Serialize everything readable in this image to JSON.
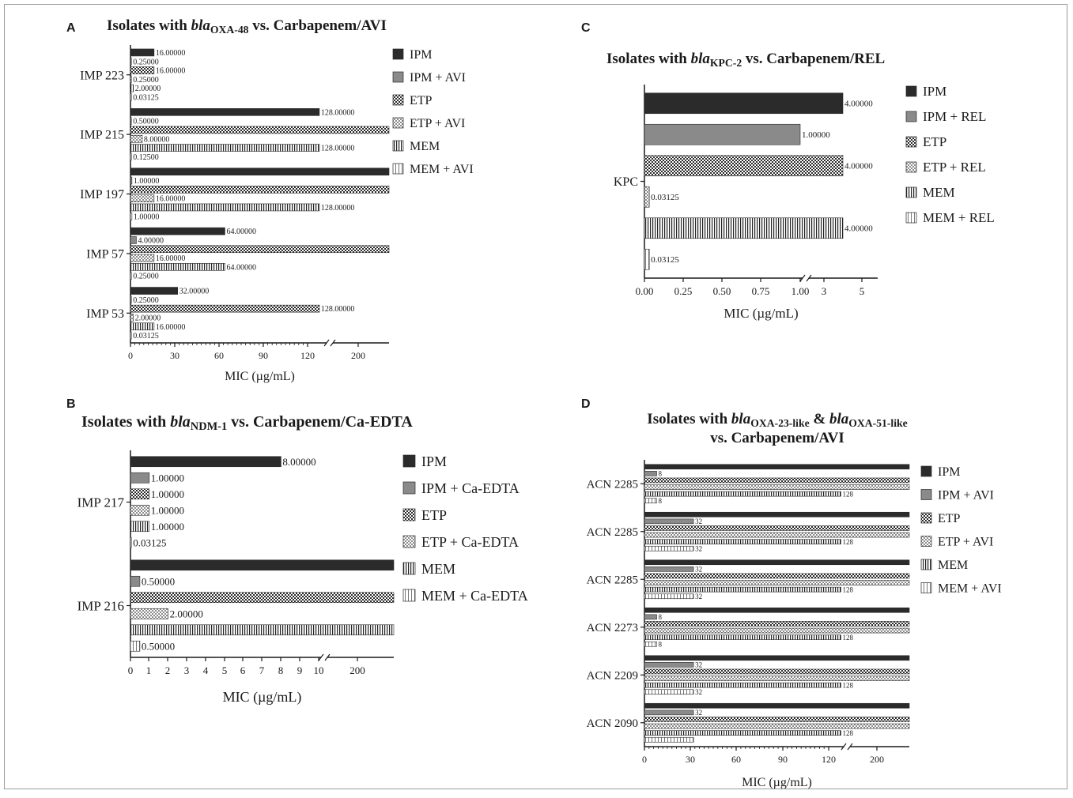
{
  "chart_data": [
    {
      "panel": "A",
      "type": "bar",
      "title_parts": {
        "prefix": "Isolates with ",
        "gene": "bla",
        "sub": "OXA-48",
        "suffix": " vs. Carbapenem/AVI"
      },
      "xlabel": "MIC (µg/mL)",
      "ylabel": "",
      "xticks": [
        "0",
        "30",
        "60",
        "90",
        "120",
        "200"
      ],
      "axis_break": {
        "from": 128,
        "to": 180,
        "max": 256
      },
      "categories": [
        "IMP 223",
        "IMP 215",
        "IMP 197",
        "IMP 57",
        "IMP 53"
      ],
      "series": [
        {
          "name": "IPM",
          "values": [
            16,
            128,
            256,
            64,
            32
          ],
          "labels": [
            "16.00000",
            "128.00000",
            "",
            "64.00000",
            "32.00000"
          ]
        },
        {
          "name": "IPM + AVI",
          "values": [
            0.25,
            0.5,
            1,
            4,
            0.25
          ],
          "labels": [
            "0.25000",
            "0.50000",
            "1.00000",
            "4.00000",
            "0.25000"
          ]
        },
        {
          "name": "ETP",
          "values": [
            16,
            256,
            256,
            256,
            128
          ],
          "labels": [
            "16.00000",
            "",
            "",
            "",
            "128.00000"
          ]
        },
        {
          "name": "ETP + AVI",
          "values": [
            0.25,
            8,
            16,
            16,
            2
          ],
          "labels": [
            "0.25000",
            "8.00000",
            "16.00000",
            "16.00000",
            "2.00000"
          ]
        },
        {
          "name": "MEM",
          "values": [
            2,
            128,
            128,
            64,
            16
          ],
          "labels": [
            "2.00000",
            "128.00000",
            "128.00000",
            "64.00000",
            "16.00000"
          ]
        },
        {
          "name": "MEM + AVI",
          "values": [
            0.03125,
            0.125,
            1,
            0.25,
            0.03125
          ],
          "labels": [
            "0.03125",
            "0.12500",
            "1.00000",
            "0.25000",
            "0.03125"
          ]
        }
      ],
      "legend": "right"
    },
    {
      "panel": "B",
      "type": "bar",
      "title_parts": {
        "prefix": "Isolates with ",
        "gene": "bla",
        "sub": "NDM-1",
        "suffix": " vs. Carbapenem/Ca-EDTA"
      },
      "xlabel": "MIC (µg/mL)",
      "ylabel": "",
      "xticks": [
        "0",
        "1",
        "2",
        "3",
        "4",
        "5",
        "6",
        "7",
        "8",
        "9",
        "10",
        "200"
      ],
      "axis_break": {
        "from": 10,
        "to": 180,
        "max": 256
      },
      "categories": [
        "IMP 217",
        "IMP 216"
      ],
      "series": [
        {
          "name": "IPM",
          "values": [
            8,
            256
          ],
          "labels": [
            "8.00000",
            ""
          ]
        },
        {
          "name": "IPM + Ca-EDTA",
          "values": [
            1,
            0.5
          ],
          "labels": [
            "1.00000",
            "0.50000"
          ]
        },
        {
          "name": "ETP",
          "values": [
            1,
            256
          ],
          "labels": [
            "1.00000",
            ""
          ]
        },
        {
          "name": "ETP + Ca-EDTA",
          "values": [
            1,
            2
          ],
          "labels": [
            "1.00000",
            "2.00000"
          ]
        },
        {
          "name": "MEM",
          "values": [
            1,
            256
          ],
          "labels": [
            "1.00000",
            ""
          ]
        },
        {
          "name": "MEM + Ca-EDTA",
          "values": [
            0.03125,
            0.5
          ],
          "labels": [
            "0.03125",
            "0.50000"
          ]
        }
      ],
      "legend": "right"
    },
    {
      "panel": "C",
      "type": "bar",
      "title_parts": {
        "prefix": "Isolates with ",
        "gene": "bla",
        "sub": "KPC-2",
        "suffix": " vs. Carbapenem/REL"
      },
      "xlabel": "MIC (µg/mL)",
      "ylabel": "",
      "xticks": [
        "0.00",
        "0.25",
        "0.50",
        "0.75",
        "1.00",
        "3",
        "5"
      ],
      "axis_break": {
        "from": 1,
        "to": 2,
        "max": 6
      },
      "categories": [
        "KPC"
      ],
      "series": [
        {
          "name": "IPM",
          "values": [
            4
          ],
          "labels": [
            "4.00000"
          ]
        },
        {
          "name": "IPM + REL",
          "values": [
            1
          ],
          "labels": [
            "1.00000"
          ]
        },
        {
          "name": "ETP",
          "values": [
            4
          ],
          "labels": [
            "4.00000"
          ]
        },
        {
          "name": "ETP + REL",
          "values": [
            0.03125
          ],
          "labels": [
            "0.03125"
          ]
        },
        {
          "name": "MEM",
          "values": [
            4
          ],
          "labels": [
            "4.00000"
          ]
        },
        {
          "name": "MEM + REL",
          "values": [
            0.03125
          ],
          "labels": [
            "0.03125"
          ]
        }
      ],
      "legend": "right"
    },
    {
      "panel": "D",
      "type": "bar",
      "title_parts": {
        "prefix": "Isolates with ",
        "gene": "bla",
        "sub": "OXA-23-like",
        "mid": " & ",
        "gene2": "bla",
        "sub2": "OXA-51-like",
        "line2": "vs. Carbapenem/AVI"
      },
      "xlabel": "MIC (µg/mL)",
      "ylabel": "",
      "xticks": [
        "0",
        "30",
        "60",
        "90",
        "120",
        "200"
      ],
      "axis_break": {
        "from": 128,
        "to": 180,
        "max": 256
      },
      "categories": [
        "ACN 2285",
        "ACN 2285",
        "ACN 2285",
        "ACN 2273",
        "ACN 2209",
        "ACN 2090"
      ],
      "series": [
        {
          "name": "IPM",
          "values": [
            256,
            256,
            256,
            256,
            256,
            256
          ],
          "labels": [
            "",
            "",
            "",
            "",
            "",
            ""
          ]
        },
        {
          "name": "IPM + AVI",
          "values": [
            8,
            32,
            32,
            8,
            32,
            32
          ],
          "labels": [
            "8",
            "32",
            "32",
            "8",
            "32",
            "32"
          ]
        },
        {
          "name": "ETP",
          "values": [
            256,
            256,
            256,
            256,
            256,
            256
          ],
          "labels": [
            "",
            "",
            "",
            "",
            "",
            ""
          ]
        },
        {
          "name": "ETP + AVI",
          "values": [
            256,
            256,
            256,
            256,
            256,
            256
          ],
          "labels": [
            "",
            "",
            "",
            "",
            "",
            ""
          ]
        },
        {
          "name": "MEM",
          "values": [
            128,
            128,
            128,
            128,
            128,
            128
          ],
          "labels": [
            "128",
            "128",
            "128",
            "128",
            "128",
            "128"
          ]
        },
        {
          "name": "MEM + AVI",
          "values": [
            8,
            32,
            32,
            8,
            32,
            32
          ],
          "labels": [
            "8",
            "32",
            "32",
            "8",
            "32",
            ""
          ]
        }
      ],
      "legend": "right"
    }
  ]
}
